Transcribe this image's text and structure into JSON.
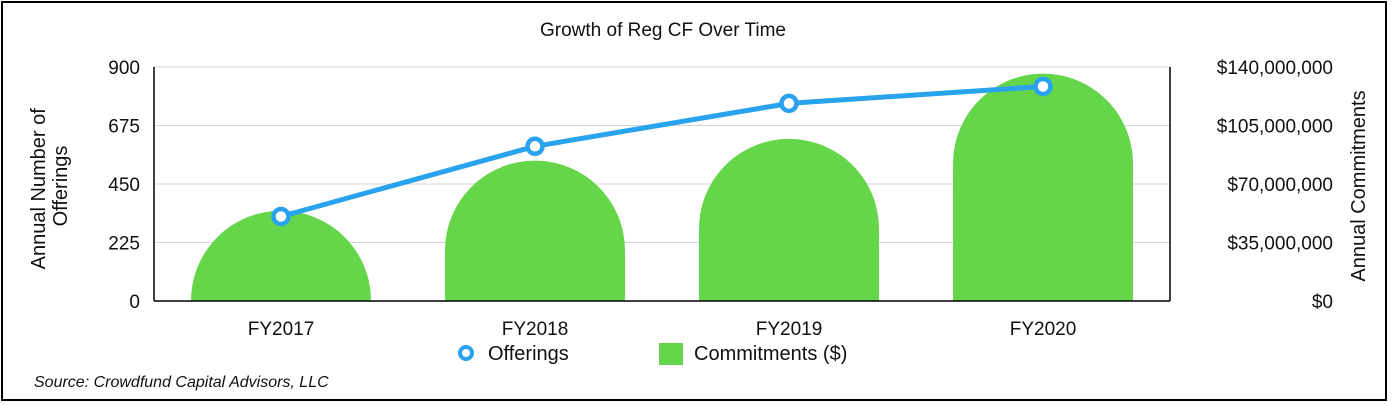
{
  "chart_data": {
    "type": "bar+line",
    "title": "Growth of Reg CF Over Time",
    "categories": [
      "FY2017",
      "FY2018",
      "FY2019",
      "FY2020"
    ],
    "y_left": {
      "label": "Annual Number of Offerings",
      "label_lines": [
        "Annual Number of",
        "Offerings"
      ],
      "ylim": [
        0,
        900
      ],
      "ticks": [
        0,
        225,
        450,
        675,
        900
      ],
      "tick_labels": [
        "0",
        "225",
        "450",
        "675",
        "900"
      ]
    },
    "y_right": {
      "label": "Annual Commitments",
      "ylim": [
        0,
        140000000
      ],
      "ticks": [
        0,
        35000000,
        70000000,
        105000000,
        140000000
      ],
      "tick_labels": [
        "$0",
        "$35,000,000",
        "$70,000,000",
        "$105,000,000",
        "$140,000,000"
      ]
    },
    "series": [
      {
        "name": "Offerings",
        "type": "line",
        "axis": "left",
        "color": "#2aa3ef",
        "values": [
          325,
          595,
          760,
          825
        ]
      },
      {
        "name": "Commitments ($)",
        "type": "bar",
        "axis": "right",
        "color": "#65d54a",
        "values": [
          54000000,
          84000000,
          97000000,
          136000000
        ]
      }
    ],
    "grid": true,
    "legend_position": "bottom-center"
  },
  "source": "Source: Crowdfund Capital Advisors, LLC"
}
